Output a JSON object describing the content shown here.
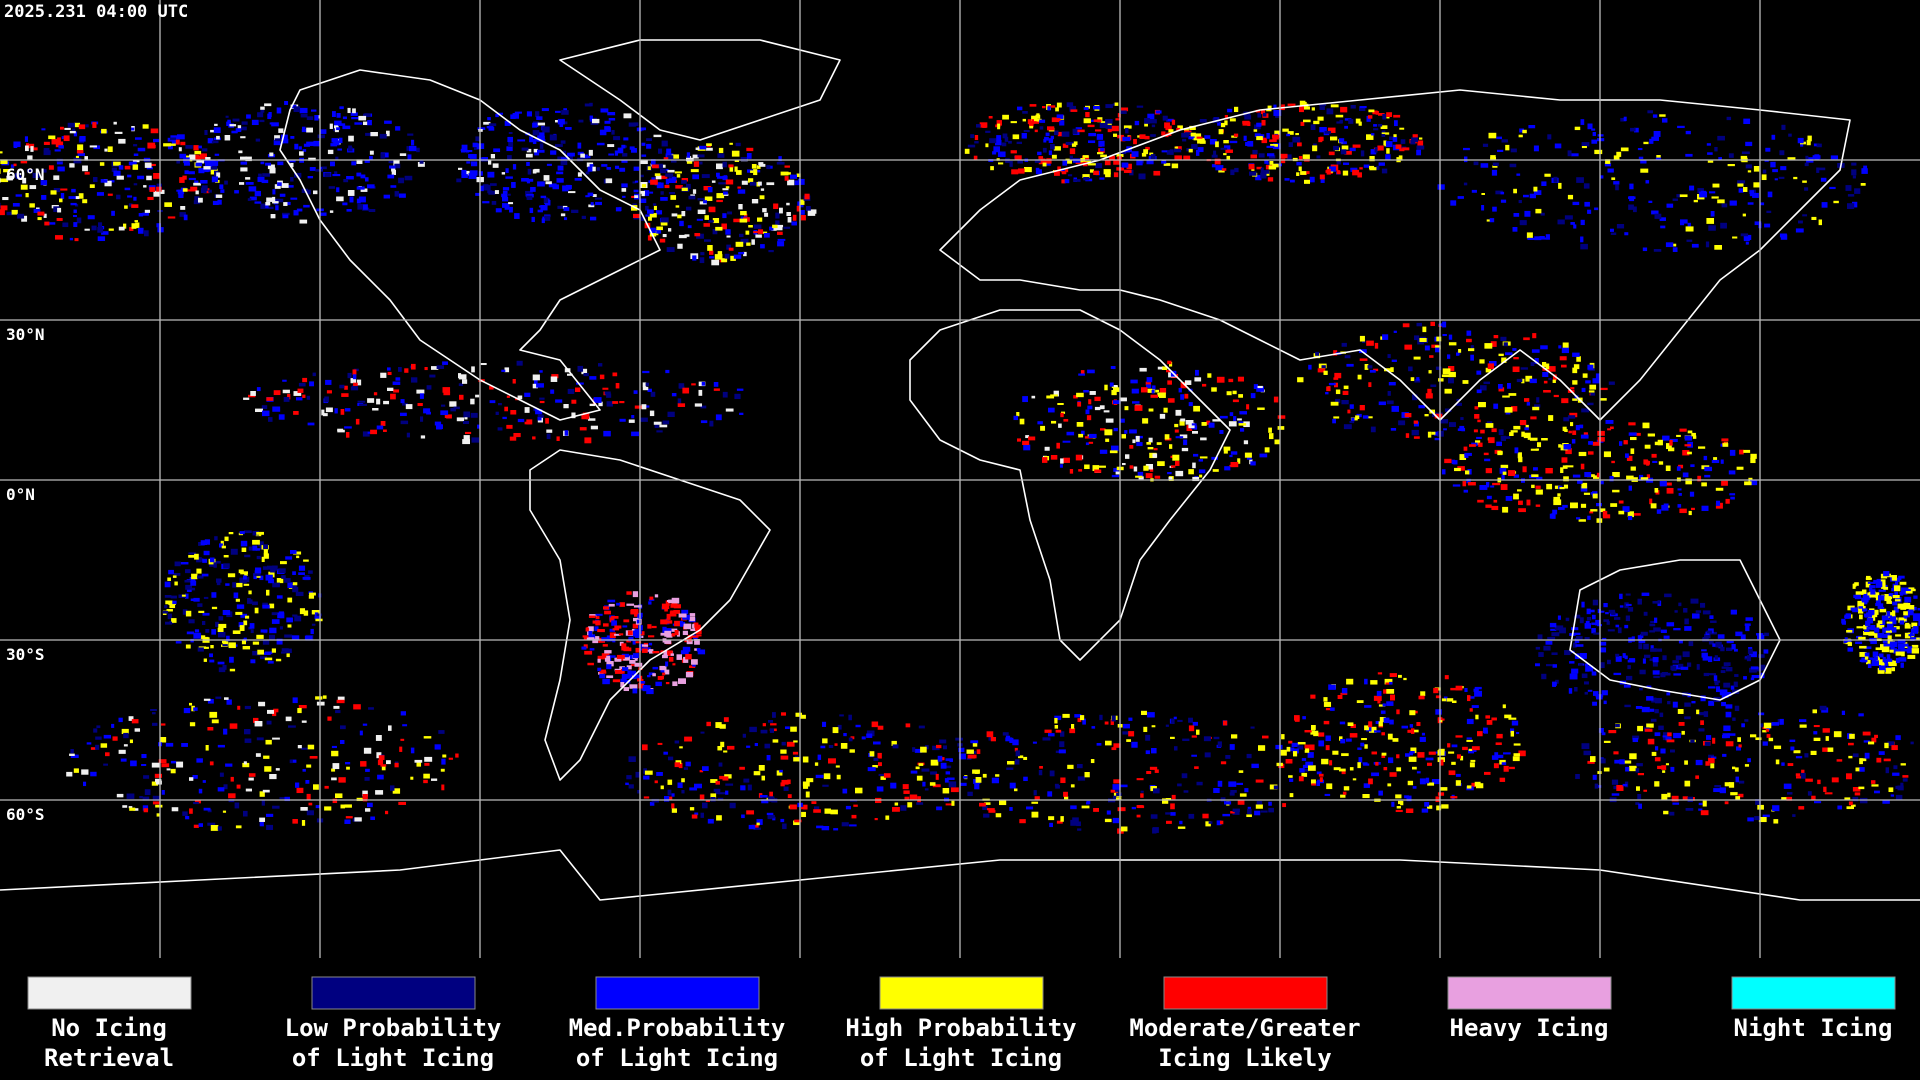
{
  "timestamp": "2025.231 04:00 UTC",
  "latitude_labels": [
    "60°N",
    "30°N",
    "0°N",
    "30°S",
    "60°S"
  ],
  "legend": [
    {
      "lines": [
        "No Icing",
        "Retrieval"
      ],
      "color": "#f0f0f0"
    },
    {
      "lines": [
        "Low Probability",
        "of Light Icing"
      ],
      "color": "#000080"
    },
    {
      "lines": [
        "Med.Probability",
        "of Light Icing"
      ],
      "color": "#0000ff"
    },
    {
      "lines": [
        "High Probability",
        "of Light Icing"
      ],
      "color": "#ffff00"
    },
    {
      "lines": [
        "Moderate/Greater",
        "Icing Likely"
      ],
      "color": "#ff0000"
    },
    {
      "lines": [
        "Heavy Icing"
      ],
      "color": "#e8a0e0"
    },
    {
      "lines": [
        "Night Icing"
      ],
      "color": "#00ffff"
    }
  ]
}
